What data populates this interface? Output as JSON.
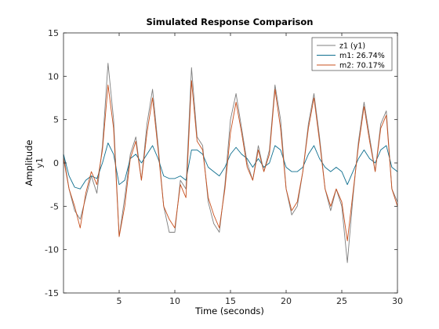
{
  "chart_data": {
    "type": "line",
    "title": "Simulated Response Comparison",
    "xlabel": "Time (seconds)",
    "ylabel": "Amplitude",
    "ylabel_sub": "y1",
    "xlim": [
      0,
      30
    ],
    "ylim": [
      -15,
      15
    ],
    "x_ticks": [
      5,
      10,
      15,
      20,
      25,
      30
    ],
    "y_ticks": [
      -15,
      -10,
      -5,
      0,
      5,
      10,
      15
    ],
    "grid": false,
    "legend_position": "top-right",
    "x": [
      0,
      0.5,
      1,
      1.5,
      2,
      2.5,
      3,
      3.5,
      4,
      4.5,
      5,
      5.5,
      6,
      6.5,
      7,
      7.5,
      8,
      8.5,
      9,
      9.5,
      10,
      10.5,
      11,
      11.5,
      12,
      12.5,
      13,
      13.5,
      14,
      14.5,
      15,
      15.5,
      16,
      16.5,
      17,
      17.5,
      18,
      18.5,
      19,
      19.5,
      20,
      20.5,
      21,
      21.5,
      22,
      22.5,
      23,
      23.5,
      24,
      24.5,
      25,
      25.5,
      26,
      26.5,
      27,
      27.5,
      28,
      28.5,
      29,
      29.5,
      30
    ],
    "series": [
      {
        "name": "z1 (y1)",
        "color": "#7f7f7f",
        "values": [
          1.0,
          -3.0,
          -5.5,
          -6.5,
          -4.0,
          -1.5,
          -3.5,
          2.0,
          11.5,
          5.0,
          -8.5,
          -4.0,
          1.0,
          3.0,
          -2.0,
          4.5,
          8.5,
          2.0,
          -5.0,
          -8.0,
          -8.0,
          -2.0,
          -3.0,
          11.0,
          3.0,
          2.0,
          -4.5,
          -7.0,
          -8.0,
          -2.5,
          5.0,
          8.0,
          4.0,
          0.0,
          -2.0,
          2.0,
          -1.0,
          1.5,
          9.0,
          5.0,
          -3.0,
          -6.0,
          -5.0,
          -1.0,
          4.5,
          8.0,
          3.0,
          -3.0,
          -5.5,
          -3.0,
          -5.0,
          -11.5,
          -4.0,
          2.5,
          7.0,
          3.0,
          -1.0,
          4.5,
          6.0,
          -3.0,
          -4.5
        ]
      },
      {
        "name": "m1: 26.74%",
        "color": "#0f6f8f",
        "values": [
          1.0,
          -1.5,
          -2.8,
          -3.0,
          -2.0,
          -1.5,
          -1.8,
          0.0,
          2.3,
          1.0,
          -2.5,
          -2.0,
          0.5,
          1.0,
          0.0,
          1.0,
          2.0,
          0.5,
          -1.5,
          -1.8,
          -1.8,
          -1.5,
          -2.0,
          1.5,
          1.5,
          1.0,
          -0.5,
          -1.0,
          -1.5,
          -0.5,
          1.0,
          1.8,
          1.0,
          0.5,
          -0.5,
          0.5,
          -0.5,
          0.0,
          2.0,
          1.5,
          -0.5,
          -1.0,
          -1.0,
          -0.5,
          1.0,
          2.0,
          0.5,
          -0.5,
          -1.0,
          -0.5,
          -1.0,
          -2.5,
          -1.0,
          0.5,
          1.5,
          0.5,
          0.0,
          1.5,
          2.0,
          -0.5,
          -1.0
        ]
      },
      {
        "name": "m2: 70.17%",
        "color": "#c8501e",
        "values": [
          0.5,
          -3.0,
          -5.0,
          -7.5,
          -3.5,
          -1.0,
          -2.5,
          1.5,
          9.0,
          4.0,
          -8.5,
          -5.0,
          0.5,
          2.5,
          -2.0,
          3.5,
          7.5,
          1.5,
          -5.0,
          -6.5,
          -7.5,
          -2.5,
          -4.0,
          9.5,
          2.5,
          1.5,
          -4.0,
          -6.0,
          -7.5,
          -3.0,
          3.5,
          7.0,
          3.5,
          -0.5,
          -2.0,
          1.5,
          -1.0,
          1.0,
          8.5,
          4.0,
          -3.0,
          -5.5,
          -4.5,
          -1.0,
          4.0,
          7.5,
          2.5,
          -3.0,
          -5.0,
          -3.0,
          -4.5,
          -9.0,
          -3.5,
          2.0,
          6.5,
          2.5,
          -1.0,
          4.0,
          5.5,
          -3.0,
          -5.0
        ]
      }
    ]
  }
}
